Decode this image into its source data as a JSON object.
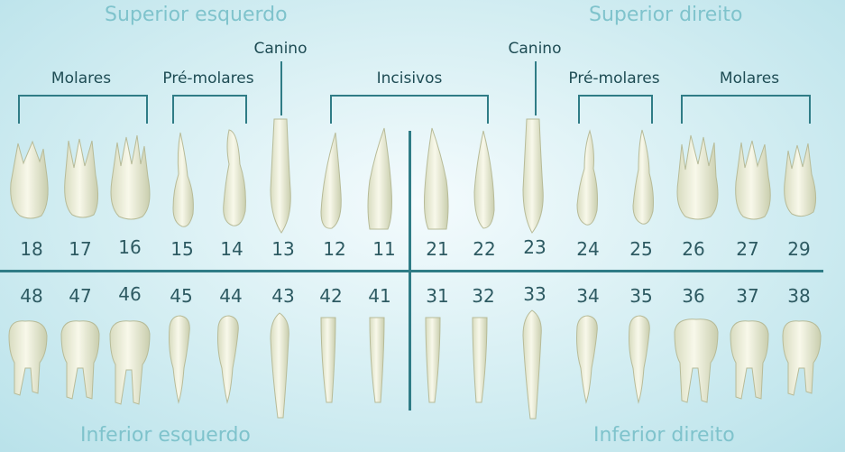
{
  "quadrants": {
    "upper_left": "Superior esquerdo",
    "upper_right": "Superior direito",
    "lower_left": "Inferior esquerdo",
    "lower_right": "Inferior  direito"
  },
  "groups": {
    "molares_left": "Molares",
    "premolares_left": "Pré-molares",
    "canino_left": "Canino",
    "incisivos": "Incisivos",
    "canino_right": "Canino",
    "premolares_right": "Pré-molares",
    "molares_right": "Molares"
  },
  "upper_numbers": [
    "18",
    "17",
    "16",
    "15",
    "14",
    "13",
    "12",
    "11",
    "21",
    "22",
    "23",
    "24",
    "25",
    "26",
    "27",
    "29"
  ],
  "lower_numbers": [
    "48",
    "47",
    "46",
    "45",
    "44",
    "43",
    "42",
    "41",
    "31",
    "32",
    "33",
    "34",
    "35",
    "36",
    "37",
    "38"
  ]
}
